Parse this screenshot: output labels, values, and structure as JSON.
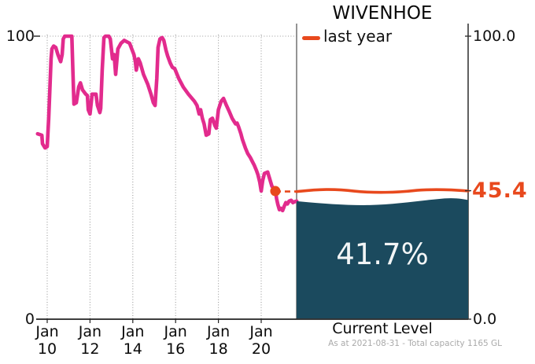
{
  "title": "WIVENHOE",
  "legend": {
    "label": "last year"
  },
  "left_axis": {
    "top": "100",
    "bottom": "0"
  },
  "right_axis": {
    "top": "100.0",
    "bottom": "0.0"
  },
  "last_year_value_label": "45.4",
  "current": {
    "percent": "41.7%",
    "caption": "Current Level"
  },
  "footnote": "As at 2021-08-31 - Total capacity 1165 GL",
  "colors": {
    "history_line": "#e22b8d",
    "last_year_line": "#e8491d",
    "water_fill": "#1b4a5e",
    "grid": "#999999",
    "axis": "#222222",
    "footnote_text": "#aaaaaa"
  },
  "chart_data": {
    "type": "line",
    "title": "WIVENHOE",
    "xlabel": "",
    "ylabel": "",
    "ylim": [
      0,
      100
    ],
    "xlim_years": [
      2009.5,
      2021.67
    ],
    "grid": "vertical dotted gridlines at each x tick, dotted horizontal line at y=100",
    "legend_position": "top-left of right panel",
    "legend": [
      {
        "label": "last year",
        "color": "#e8491d"
      }
    ],
    "left_axis_ticks": [
      "100",
      "0"
    ],
    "right_axis_ticks": [
      "100.0",
      "45.4",
      "0.0"
    ],
    "x_tick_years": [
      2010,
      2012,
      2014,
      2016,
      2018,
      2020
    ],
    "x_tick_labels": [
      "Jan 10",
      "Jan 12",
      "Jan 14",
      "Jan 16",
      "Jan 18",
      "Jan 20"
    ],
    "series": [
      {
        "name": "storage level history (% full)",
        "color": "#e22b8d",
        "points": [
          [
            2009.55,
            65.5
          ],
          [
            2009.75,
            65
          ],
          [
            2009.78,
            62
          ],
          [
            2009.9,
            60.5
          ],
          [
            2010.0,
            61
          ],
          [
            2010.07,
            71
          ],
          [
            2010.18,
            92
          ],
          [
            2010.22,
            95.5
          ],
          [
            2010.3,
            96.5
          ],
          [
            2010.4,
            96
          ],
          [
            2010.5,
            93.5
          ],
          [
            2010.63,
            91
          ],
          [
            2010.7,
            93.5
          ],
          [
            2010.75,
            99
          ],
          [
            2010.82,
            100
          ],
          [
            2011.15,
            100
          ],
          [
            2011.2,
            88
          ],
          [
            2011.25,
            76
          ],
          [
            2011.36,
            76.5
          ],
          [
            2011.47,
            82
          ],
          [
            2011.55,
            83.5
          ],
          [
            2011.65,
            81
          ],
          [
            2011.8,
            79.5
          ],
          [
            2011.88,
            79
          ],
          [
            2011.92,
            74
          ],
          [
            2012.0,
            72.5
          ],
          [
            2012.1,
            79.5
          ],
          [
            2012.28,
            79.5
          ],
          [
            2012.35,
            75.5
          ],
          [
            2012.46,
            73
          ],
          [
            2012.5,
            74.5
          ],
          [
            2012.57,
            88
          ],
          [
            2012.65,
            99.5
          ],
          [
            2012.72,
            100
          ],
          [
            2012.88,
            100
          ],
          [
            2012.95,
            99
          ],
          [
            2013.05,
            92
          ],
          [
            2013.13,
            93.5
          ],
          [
            2013.2,
            86.5
          ],
          [
            2013.3,
            95.5
          ],
          [
            2013.45,
            97.5
          ],
          [
            2013.6,
            98.5
          ],
          [
            2013.85,
            97.5
          ],
          [
            2014.05,
            93.5
          ],
          [
            2014.12,
            91
          ],
          [
            2014.16,
            88
          ],
          [
            2014.26,
            92
          ],
          [
            2014.35,
            90.5
          ],
          [
            2014.5,
            86.5
          ],
          [
            2014.7,
            83
          ],
          [
            2014.85,
            79.5
          ],
          [
            2014.96,
            76.5
          ],
          [
            2015.04,
            75.5
          ],
          [
            2015.12,
            85
          ],
          [
            2015.18,
            96
          ],
          [
            2015.27,
            99
          ],
          [
            2015.37,
            99.5
          ],
          [
            2015.45,
            98.5
          ],
          [
            2015.55,
            95
          ],
          [
            2015.63,
            93
          ],
          [
            2015.75,
            90.5
          ],
          [
            2015.85,
            89
          ],
          [
            2015.96,
            88.5
          ],
          [
            2016.15,
            85
          ],
          [
            2016.36,
            82
          ],
          [
            2016.6,
            79.5
          ],
          [
            2016.88,
            77
          ],
          [
            2017.0,
            75.5
          ],
          [
            2017.1,
            72.5
          ],
          [
            2017.17,
            74
          ],
          [
            2017.25,
            71
          ],
          [
            2017.33,
            69
          ],
          [
            2017.43,
            65
          ],
          [
            2017.55,
            65.5
          ],
          [
            2017.62,
            70.5
          ],
          [
            2017.72,
            71
          ],
          [
            2017.83,
            68.5
          ],
          [
            2017.9,
            67.5
          ],
          [
            2018.0,
            74
          ],
          [
            2018.13,
            77
          ],
          [
            2018.24,
            78
          ],
          [
            2018.35,
            76
          ],
          [
            2018.5,
            73.5
          ],
          [
            2018.64,
            71
          ],
          [
            2018.72,
            70
          ],
          [
            2018.8,
            69
          ],
          [
            2018.87,
            69.3
          ],
          [
            2018.94,
            68
          ],
          [
            2019.05,
            65.5
          ],
          [
            2019.12,
            63.5
          ],
          [
            2019.26,
            60.5
          ],
          [
            2019.37,
            58.5
          ],
          [
            2019.5,
            57
          ],
          [
            2019.6,
            55.5
          ],
          [
            2019.67,
            54.5
          ],
          [
            2019.78,
            52.5
          ],
          [
            2019.85,
            51
          ],
          [
            2019.93,
            48.5
          ],
          [
            2020.0,
            45.3
          ],
          [
            2020.07,
            49
          ],
          [
            2020.15,
            51.5
          ],
          [
            2020.3,
            52
          ],
          [
            2020.4,
            49.5
          ],
          [
            2020.5,
            47
          ],
          [
            2020.66,
            45.4
          ],
          [
            2020.72,
            42.5
          ],
          [
            2020.78,
            40.5
          ],
          [
            2020.85,
            38.7
          ],
          [
            2020.92,
            39.2
          ],
          [
            2021.0,
            38.4
          ],
          [
            2021.08,
            40
          ],
          [
            2021.15,
            41.2
          ],
          [
            2021.22,
            40.7
          ],
          [
            2021.3,
            41.7
          ],
          [
            2021.4,
            42
          ],
          [
            2021.48,
            41.2
          ],
          [
            2021.56,
            41.5
          ],
          [
            2021.66,
            41.7
          ]
        ]
      }
    ],
    "last_year_marker": {
      "year": 2020.66,
      "value": 45.4,
      "label": "45.4"
    },
    "current_level": {
      "value_percent": 41.7,
      "label": "41.7%",
      "caption": "Current Level"
    },
    "footnote": "As at 2021-08-31 - Total capacity 1165 GL"
  }
}
